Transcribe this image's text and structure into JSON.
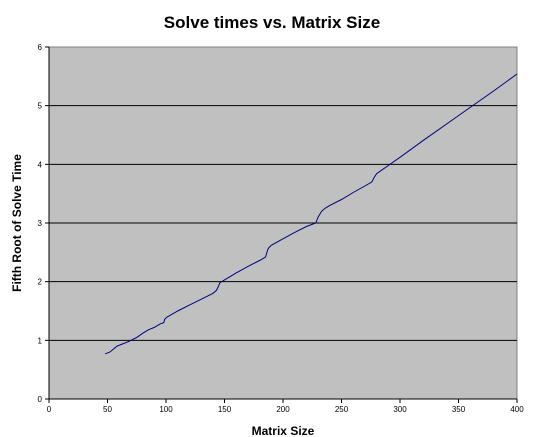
{
  "chart_data": {
    "type": "line",
    "title": "Solve times vs. Matrix Size",
    "xlabel": "Matrix Size",
    "ylabel": "Fifth Root of Solve Time",
    "xlim": [
      0,
      400
    ],
    "ylim": [
      0,
      6
    ],
    "xticks": [
      "0",
      "50",
      "100",
      "150",
      "200",
      "250",
      "300",
      "350",
      "400"
    ],
    "yticks": [
      "0",
      "1",
      "2",
      "3",
      "4",
      "5",
      "6"
    ],
    "grid": "horizontal",
    "legend": "none",
    "plot_background": "#c0c0c0",
    "line_color": "#000080",
    "series": [
      {
        "x": [
          48,
          52,
          55,
          58,
          62,
          68,
          75,
          80,
          85,
          90,
          95,
          98,
          99,
          100,
          101,
          103,
          110,
          120,
          130,
          140,
          143,
          145,
          146,
          150,
          160,
          170,
          180,
          185,
          186,
          187,
          188,
          190,
          200,
          210,
          220,
          228,
          230,
          233,
          236,
          240,
          250,
          260,
          270,
          276,
          278,
          280,
          290,
          300,
          320,
          340,
          360,
          380,
          400
        ],
        "y": [
          0.77,
          0.8,
          0.85,
          0.9,
          0.93,
          0.98,
          1.05,
          1.12,
          1.18,
          1.22,
          1.28,
          1.3,
          1.36,
          1.38,
          1.4,
          1.42,
          1.5,
          1.6,
          1.7,
          1.8,
          1.85,
          1.93,
          1.98,
          2.03,
          2.15,
          2.26,
          2.36,
          2.42,
          2.48,
          2.55,
          2.58,
          2.62,
          2.73,
          2.84,
          2.94,
          3.0,
          3.1,
          3.2,
          3.25,
          3.3,
          3.4,
          3.52,
          3.63,
          3.7,
          3.78,
          3.84,
          3.98,
          4.12,
          4.41,
          4.69,
          4.97,
          5.25,
          5.54
        ]
      }
    ]
  }
}
